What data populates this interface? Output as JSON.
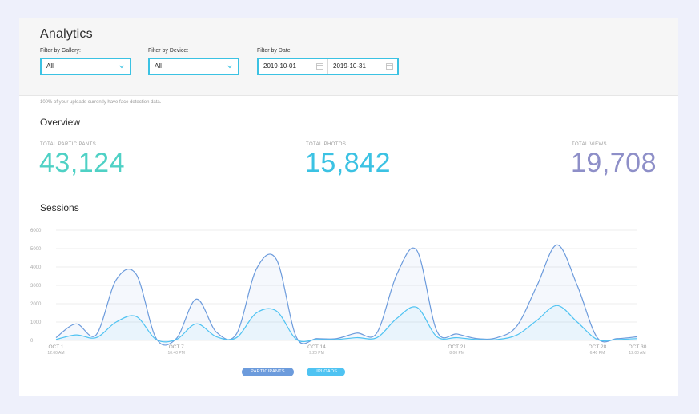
{
  "header": {
    "title": "Analytics"
  },
  "filters": {
    "gallery": {
      "label": "Filter by Gallery:",
      "value": "All"
    },
    "device": {
      "label": "Filter by Device:",
      "value": "All"
    },
    "date": {
      "label": "Filter by Date:",
      "start": "2019-10-01",
      "end": "2019-10-31"
    }
  },
  "note": "100% of your uploads currently have face detection data.",
  "overview": {
    "title": "Overview",
    "stats": [
      {
        "label": "TOTAL PARTICIPANTS",
        "value": "43,124",
        "color": "#4fd1c5"
      },
      {
        "label": "TOTAL PHOTOS",
        "value": "15,842",
        "color": "#3bc2e3"
      },
      {
        "label": "TOTAL VIEWS",
        "value": "19,708",
        "color": "#8e8fc8"
      }
    ]
  },
  "sessions": {
    "title": "Sessions"
  },
  "legend": [
    {
      "label": "PARTICIPANTS",
      "color": "#6c9bdc"
    },
    {
      "label": "UPLOADS",
      "color": "#4fc3f2"
    }
  ],
  "chart_data": {
    "type": "area",
    "title": "Sessions",
    "ylim": [
      0,
      6000
    ],
    "yticks": [
      "0",
      "1000",
      "2000",
      "3000",
      "4000",
      "5000",
      "6000"
    ],
    "xticks": [
      {
        "day": 1,
        "line1": "OCT 1",
        "line2": "12:00 AM"
      },
      {
        "day": 7,
        "line1": "OCT 7",
        "line2": "10:40 PM"
      },
      {
        "day": 14,
        "line1": "OCT 14",
        "line2": "9:20 PM"
      },
      {
        "day": 21,
        "line1": "OCT 21",
        "line2": "8:00 PM"
      },
      {
        "day": 28,
        "line1": "OCT 28",
        "line2": "6:40 PM"
      },
      {
        "day": 30,
        "line1": "OCT 30",
        "line2": "12:00 AM"
      }
    ],
    "x": [
      1,
      2,
      3,
      4,
      5,
      6,
      7,
      8,
      9,
      10,
      11,
      12,
      13,
      14,
      15,
      16,
      17,
      18,
      19,
      20,
      21,
      22,
      23,
      24,
      25,
      26,
      27,
      28,
      29,
      30
    ],
    "series": [
      {
        "name": "PARTICIPANTS",
        "color": "#6c9bdc",
        "values": [
          150,
          900,
          300,
          3300,
          3600,
          100,
          100,
          2250,
          450,
          350,
          3900,
          4400,
          150,
          100,
          100,
          400,
          400,
          3600,
          4900,
          500,
          350,
          100,
          150,
          800,
          3000,
          5200,
          3000,
          150,
          100,
          200
        ]
      },
      {
        "name": "UPLOADS",
        "color": "#4fc3f2",
        "values": [
          50,
          300,
          150,
          1000,
          1300,
          50,
          50,
          900,
          200,
          150,
          1500,
          1600,
          50,
          50,
          50,
          150,
          150,
          1200,
          1800,
          200,
          150,
          50,
          50,
          300,
          1100,
          1900,
          1000,
          50,
          50,
          100
        ]
      }
    ]
  }
}
